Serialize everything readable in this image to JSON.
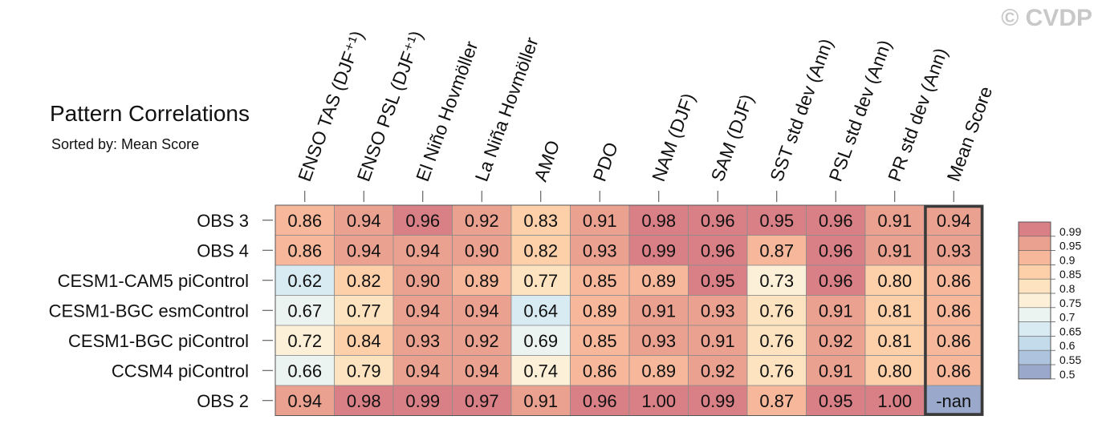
{
  "credit": "© CVDP",
  "chart_data": {
    "type": "heatmap",
    "title": "Pattern Correlations",
    "subtitle": "Sorted by: Mean Score",
    "columns": [
      "ENSO TAS (DJF⁺¹)",
      "ENSO PSL (DJF⁺¹)",
      "El Niño Hovmöller",
      "La Niña Hovmöller",
      "AMO",
      "PDO",
      "NAM (DJF)",
      "SAM (DJF)",
      "SST std dev (Ann)",
      "PSL std dev (Ann)",
      "PR std dev (Ann)",
      "Mean Score"
    ],
    "rows": [
      "OBS 3",
      "OBS 4",
      "CESM1-CAM5 piControl",
      "CESM1-BGC esmControl",
      "CESM1-BGC piControl",
      "CCSM4 piControl",
      "OBS 2"
    ],
    "values": [
      [
        "0.86",
        "0.94",
        "0.96",
        "0.92",
        "0.83",
        "0.91",
        "0.98",
        "0.96",
        "0.95",
        "0.96",
        "0.91",
        "0.94"
      ],
      [
        "0.86",
        "0.94",
        "0.94",
        "0.90",
        "0.82",
        "0.93",
        "0.99",
        "0.96",
        "0.87",
        "0.96",
        "0.91",
        "0.93"
      ],
      [
        "0.62",
        "0.82",
        "0.90",
        "0.89",
        "0.77",
        "0.85",
        "0.89",
        "0.95",
        "0.73",
        "0.96",
        "0.80",
        "0.86"
      ],
      [
        "0.67",
        "0.77",
        "0.94",
        "0.94",
        "0.64",
        "0.89",
        "0.91",
        "0.93",
        "0.76",
        "0.91",
        "0.81",
        "0.86"
      ],
      [
        "0.72",
        "0.84",
        "0.93",
        "0.92",
        "0.69",
        "0.85",
        "0.93",
        "0.91",
        "0.76",
        "0.92",
        "0.81",
        "0.86"
      ],
      [
        "0.66",
        "0.79",
        "0.94",
        "0.94",
        "0.74",
        "0.86",
        "0.89",
        "0.92",
        "0.76",
        "0.91",
        "0.80",
        "0.86"
      ],
      [
        "0.94",
        "0.98",
        "0.99",
        "0.97",
        "0.91",
        "0.96",
        "1.00",
        "0.99",
        "0.87",
        "0.95",
        "1.00",
        "-nan"
      ]
    ],
    "highlight_column": "Mean Score",
    "colorbar": {
      "labels": [
        "0.99",
        "0.95",
        "0.9",
        "0.85",
        "0.8",
        "0.75",
        "0.7",
        "0.65",
        "0.6",
        "0.55",
        "0.5"
      ],
      "boundaries": [
        0.5,
        0.55,
        0.6,
        0.65,
        0.7,
        0.75,
        0.8,
        0.85,
        0.9,
        0.95,
        0.99
      ],
      "colors": [
        "#9aa9cb",
        "#adc3de",
        "#c4dbeb",
        "#d9ebf2",
        "#ecf4f2",
        "#fcf1d8",
        "#fde3bf",
        "#fdd0aa",
        "#f6b79a",
        "#eba190",
        "#d97f86"
      ],
      "nan_color": "#9aa9cb"
    }
  }
}
